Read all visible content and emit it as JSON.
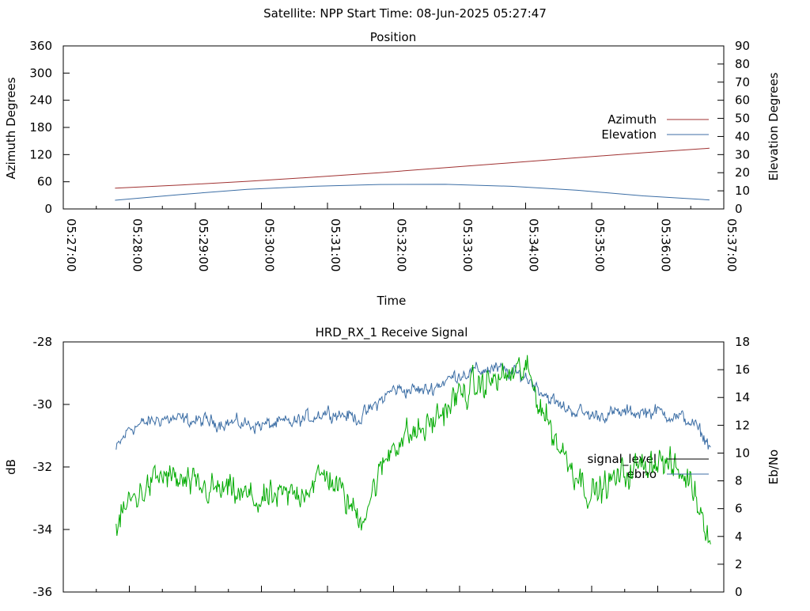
{
  "header": {
    "title": "Satellite: NPP    Start Time: 08-Jun-2025 05:27:47"
  },
  "chart_data": [
    {
      "type": "line",
      "title": "Position",
      "xlabel": "Time",
      "ylabel": "Azimuth Degrees",
      "y2label": "Elevation Degrees",
      "x_ticks": [
        "05:27:00",
        "05:28:00",
        "05:29:00",
        "05:30:00",
        "05:31:00",
        "05:32:00",
        "05:33:00",
        "05:34:00",
        "05:35:00",
        "05:36:00",
        "05:37:00"
      ],
      "xlim": [
        "05:27:00",
        "05:37:00"
      ],
      "ylim": [
        0,
        360
      ],
      "y_ticks": [
        0,
        60,
        120,
        180,
        240,
        300,
        360
      ],
      "y2lim": [
        0,
        90
      ],
      "y2_ticks": [
        0,
        10,
        20,
        30,
        40,
        50,
        60,
        70,
        80,
        90
      ],
      "legend_position": "right",
      "series": [
        {
          "name": "Azimuth",
          "axis": "y",
          "color": "#a03232",
          "x": [
            "05:27:47",
            "05:28:47",
            "05:29:47",
            "05:30:47",
            "05:31:47",
            "05:32:47",
            "05:33:47",
            "05:34:47",
            "05:35:47",
            "05:36:47"
          ],
          "values": [
            46,
            53,
            61,
            70,
            80,
            91,
            102,
            113,
            124,
            134
          ]
        },
        {
          "name": "Elevation",
          "axis": "y2",
          "color": "#3c6ea5",
          "x": [
            "05:27:47",
            "05:28:47",
            "05:29:47",
            "05:30:47",
            "05:31:47",
            "05:32:47",
            "05:33:47",
            "05:34:47",
            "05:35:47",
            "05:36:47"
          ],
          "values": [
            4.8,
            8,
            10.8,
            12.5,
            13.5,
            13.6,
            12.5,
            10.3,
            7.2,
            5
          ]
        }
      ]
    },
    {
      "type": "line",
      "title": "HRD_RX_1 Receive Signal",
      "ylabel": "dB",
      "y2label": "Eb/No",
      "ylim": [
        -36,
        -28
      ],
      "y_ticks": [
        -36,
        -34,
        -32,
        -30,
        -28
      ],
      "y2lim": [
        0,
        18
      ],
      "y2_ticks": [
        0,
        2,
        4,
        6,
        8,
        10,
        12,
        14,
        16,
        18
      ],
      "legend_position": "right",
      "series": [
        {
          "name": "signal_level",
          "axis": "y",
          "color": "#000000",
          "values": []
        },
        {
          "name": "ebno",
          "axis": "y2",
          "color": "#3c6ea5",
          "x_minutes": [
            0.8,
            1.0,
            1.5,
            2.0,
            2.5,
            3.0,
            3.5,
            4.0,
            4.5,
            5.0,
            5.5,
            6.0,
            6.5,
            7.0,
            7.5,
            8.0,
            8.5,
            9.0,
            9.5,
            9.8
          ],
          "values": [
            10.2,
            11.8,
            12.5,
            12.3,
            12.2,
            12.0,
            12.2,
            13.0,
            12.5,
            14.6,
            14.5,
            15.7,
            16.1,
            15.5,
            13.4,
            12.7,
            12.9,
            13.0,
            12.3,
            10.5
          ]
        },
        {
          "name": "",
          "axis": "y2",
          "color": "#00aa00",
          "x_minutes": [
            0.8,
            1.0,
            1.5,
            2.0,
            2.5,
            3.0,
            3.5,
            4.0,
            4.5,
            5.0,
            5.5,
            6.0,
            6.5,
            7.0,
            7.5,
            8.0,
            8.5,
            9.0,
            9.5,
            9.8
          ],
          "values": [
            4.5,
            6.5,
            8.4,
            7.5,
            7.2,
            6.5,
            7.0,
            8.5,
            5.2,
            10.8,
            11.8,
            14.2,
            15.2,
            16.0,
            10.5,
            7.0,
            8.5,
            9.6,
            8.0,
            4.0
          ]
        }
      ]
    }
  ]
}
